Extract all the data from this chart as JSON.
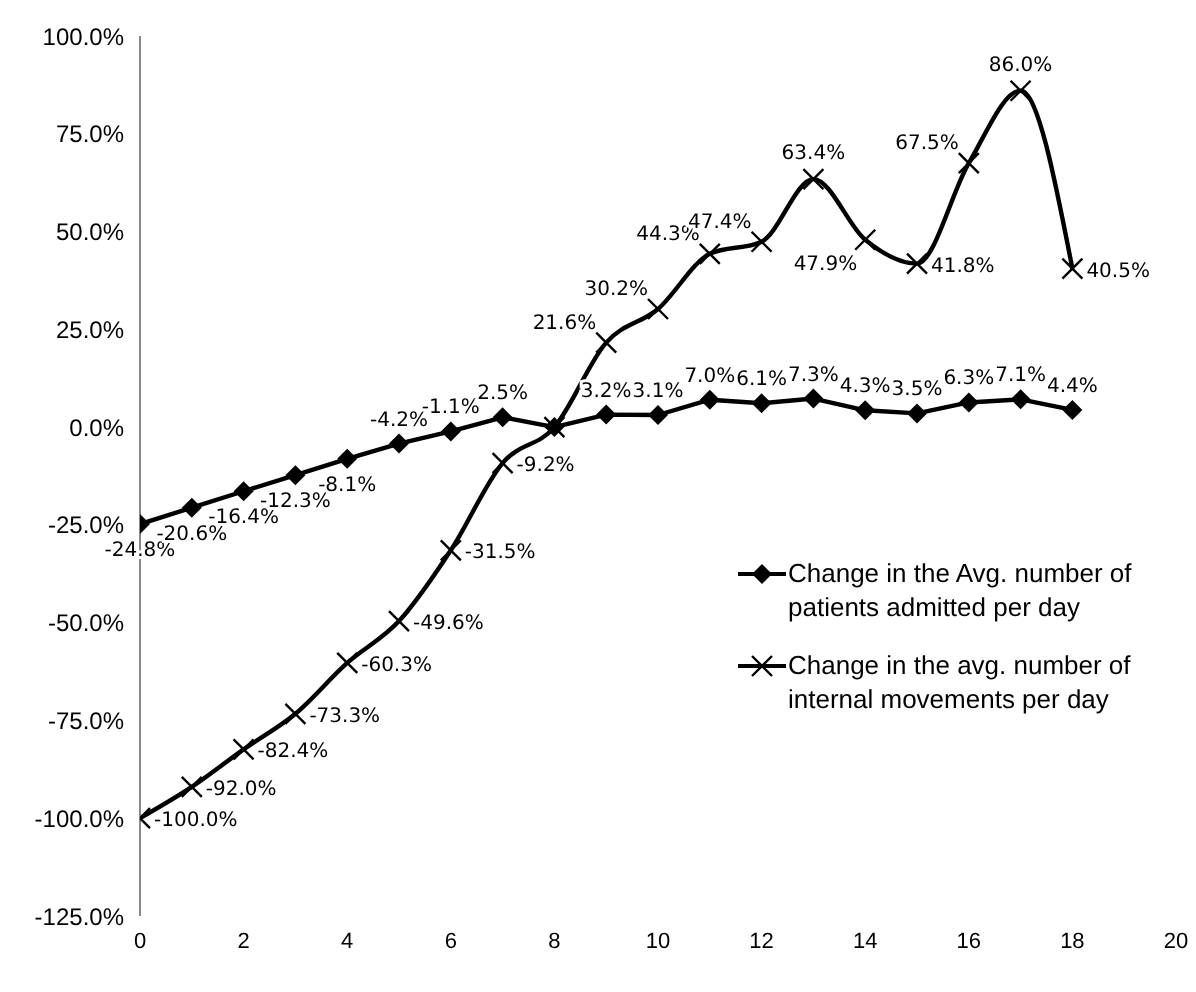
{
  "chart_data": {
    "type": "line",
    "x": [
      0,
      1,
      2,
      3,
      4,
      5,
      6,
      7,
      8,
      9,
      10,
      11,
      12,
      13,
      14,
      15,
      16,
      17,
      18
    ],
    "series": [
      {
        "name": "Change in the Avg. number of patients admitted per day",
        "color": "#000000",
        "marker": "diamond",
        "line_style": "solid",
        "values": [
          -24.8,
          -20.6,
          -16.4,
          -12.3,
          -8.1,
          -4.2,
          -1.1,
          2.5,
          0,
          3.2,
          3.1,
          7.0,
          6.1,
          7.3,
          4.3,
          3.5,
          6.3,
          7.1,
          4.4
        ],
        "value_labels": [
          "-24.8%",
          "-20.6%",
          "-16.4%",
          "-12.3%",
          "-8.1%",
          "-4.2%",
          "-1.1%",
          "2.5%",
          null,
          "3.2%",
          "3.1%",
          "7.0%",
          "6.1%",
          "7.3%",
          "4.3%",
          "3.5%",
          "6.3%",
          "7.1%",
          "4.4%"
        ]
      },
      {
        "name": "Change in the avg. number of internal movements per day",
        "color": "#000000",
        "marker": "cross",
        "line_style": "solid",
        "values": [
          -100.0,
          -92.0,
          -82.4,
          -73.3,
          -60.3,
          -49.6,
          -31.5,
          -9.2,
          0,
          21.6,
          30.2,
          44.3,
          47.4,
          63.4,
          47.9,
          41.8,
          67.5,
          86.0,
          40.5
        ],
        "value_labels": [
          "-100.0%",
          "-92.0%",
          "-82.4%",
          "-73.3%",
          "-60.3%",
          "-49.6%",
          "-31.5%",
          "-9.2%",
          null,
          "21.6%",
          "30.2%",
          "44.3%",
          "47.4%",
          "63.4%",
          "47.9%",
          "41.8%",
          "67.5%",
          "86.0%",
          "40.5%"
        ]
      }
    ],
    "xlim": [
      0,
      20
    ],
    "xticks": [
      0,
      2,
      4,
      6,
      8,
      10,
      12,
      14,
      16,
      18,
      20
    ],
    "ylim": [
      -125,
      100
    ],
    "yticks": [
      {
        "value": -125,
        "label": "-125.0%"
      },
      {
        "value": -100,
        "label": "-100.0%"
      },
      {
        "value": -75,
        "label": "-75.0%"
      },
      {
        "value": -50,
        "label": "-50.0%"
      },
      {
        "value": -25,
        "label": "-25.0%"
      },
      {
        "value": 0,
        "label": "0.0%"
      },
      {
        "value": 25,
        "label": "25.0%"
      },
      {
        "value": 50,
        "label": "50.0%"
      },
      {
        "value": 75,
        "label": "75.0%"
      },
      {
        "value": 100,
        "label": "100.0%"
      }
    ],
    "grid": false,
    "legend": "bottom right"
  }
}
